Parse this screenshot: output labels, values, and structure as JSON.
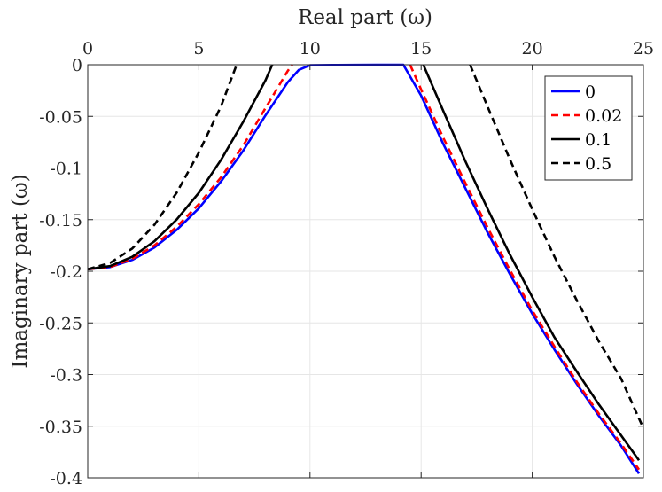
{
  "chart_data": {
    "type": "line",
    "xlabel": "Real part (ω)",
    "ylabel": "Imaginary part (ω)",
    "xlim": [
      0,
      25
    ],
    "ylim": [
      -0.4,
      0
    ],
    "x_axis_position": "top",
    "x_ticks": [
      0,
      5,
      10,
      15,
      20,
      25
    ],
    "x_tick_labels": [
      "0",
      "5",
      "10",
      "15",
      "20",
      "25"
    ],
    "y_ticks": [
      0,
      -0.05,
      -0.1,
      -0.15,
      -0.2,
      -0.25,
      -0.3,
      -0.35,
      -0.4
    ],
    "y_tick_labels": [
      "0",
      "-0.05",
      "-0.1",
      "-0.15",
      "-0.2",
      "-0.25",
      "-0.3",
      "-0.35",
      "-0.4"
    ],
    "grid": true,
    "legend_position": "top-right",
    "series": [
      {
        "name": "0",
        "color": "#0000ff",
        "dash": "solid",
        "segments": [
          [
            [
              0,
              -0.198
            ],
            [
              1,
              -0.196
            ],
            [
              2,
              -0.189
            ],
            [
              3,
              -0.177
            ],
            [
              4,
              -0.16
            ],
            [
              5,
              -0.139
            ],
            [
              6,
              -0.113
            ],
            [
              7,
              -0.083
            ],
            [
              8,
              -0.049
            ],
            [
              9,
              -0.017
            ],
            [
              9.5,
              -0.005
            ],
            [
              10,
              -0.0005
            ],
            [
              11,
              -0.0003
            ],
            [
              12,
              -0.0002
            ],
            [
              13,
              -0.0001
            ],
            [
              14,
              0.0
            ],
            [
              14.2,
              0.0
            ],
            [
              15,
              -0.03
            ],
            [
              16,
              -0.077
            ],
            [
              17,
              -0.12
            ],
            [
              18,
              -0.163
            ],
            [
              19,
              -0.203
            ],
            [
              20,
              -0.241
            ],
            [
              21,
              -0.276
            ],
            [
              22,
              -0.309
            ],
            [
              23,
              -0.34
            ],
            [
              24,
              -0.369
            ],
            [
              24.8,
              -0.396
            ]
          ]
        ]
      },
      {
        "name": "0.02",
        "color": "#ff0000",
        "dash": "dashed",
        "segments": [
          [
            [
              0,
              -0.198
            ],
            [
              1,
              -0.196
            ],
            [
              2,
              -0.188
            ],
            [
              3,
              -0.175
            ],
            [
              4,
              -0.157
            ],
            [
              5,
              -0.135
            ],
            [
              6,
              -0.109
            ],
            [
              7,
              -0.078
            ],
            [
              8,
              -0.042
            ],
            [
              9,
              -0.006
            ],
            [
              9.2,
              0.0
            ]
          ],
          [
            [
              14.5,
              0.0
            ],
            [
              15,
              -0.024
            ],
            [
              16,
              -0.071
            ],
            [
              17,
              -0.115
            ],
            [
              18,
              -0.158
            ],
            [
              19,
              -0.199
            ],
            [
              20,
              -0.238
            ],
            [
              21,
              -0.273
            ],
            [
              22,
              -0.307
            ],
            [
              23,
              -0.338
            ],
            [
              24,
              -0.367
            ],
            [
              24.8,
              -0.392
            ]
          ]
        ]
      },
      {
        "name": "0.1",
        "color": "#000000",
        "dash": "solid",
        "segments": [
          [
            [
              0,
              -0.198
            ],
            [
              1,
              -0.195
            ],
            [
              2,
              -0.186
            ],
            [
              3,
              -0.171
            ],
            [
              4,
              -0.15
            ],
            [
              5,
              -0.124
            ],
            [
              6,
              -0.092
            ],
            [
              7,
              -0.055
            ],
            [
              8,
              -0.015
            ],
            [
              8.3,
              0.0
            ]
          ],
          [
            [
              15.1,
              0.0
            ],
            [
              16,
              -0.045
            ],
            [
              17,
              -0.094
            ],
            [
              18,
              -0.14
            ],
            [
              19,
              -0.184
            ],
            [
              20,
              -0.225
            ],
            [
              21,
              -0.264
            ],
            [
              22,
              -0.297
            ],
            [
              23,
              -0.329
            ],
            [
              24,
              -0.359
            ],
            [
              24.8,
              -0.383
            ]
          ]
        ]
      },
      {
        "name": "0.5",
        "color": "#000000",
        "dash": "dashed",
        "segments": [
          [
            [
              0,
              -0.198
            ],
            [
              1,
              -0.192
            ],
            [
              2,
              -0.178
            ],
            [
              3,
              -0.155
            ],
            [
              4,
              -0.124
            ],
            [
              5,
              -0.085
            ],
            [
              6,
              -0.04
            ],
            [
              6.7,
              0.0
            ]
          ],
          [
            [
              17.2,
              0.0
            ],
            [
              18,
              -0.041
            ],
            [
              19,
              -0.092
            ],
            [
              20,
              -0.14
            ],
            [
              21,
              -0.186
            ],
            [
              22,
              -0.228
            ],
            [
              23,
              -0.268
            ],
            [
              24,
              -0.304
            ],
            [
              25,
              -0.352
            ]
          ]
        ]
      }
    ]
  }
}
